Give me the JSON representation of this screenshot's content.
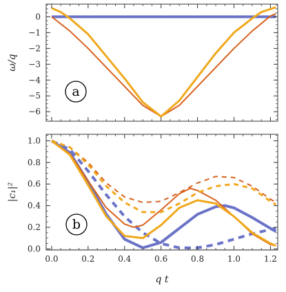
{
  "chart_data": [
    {
      "type": "line",
      "panel_label": "a",
      "xlabel": "",
      "ylabel": "ω/q",
      "xlim": [
        -0.03,
        1.24
      ],
      "ylim": [
        -6.6,
        0.8
      ],
      "xticks": [
        0.0,
        0.2,
        0.4,
        0.6,
        0.8,
        1.0,
        1.2
      ],
      "yticks": [
        0,
        -1,
        -2,
        -3,
        -4,
        -5,
        -6
      ],
      "ytick_labels": [
        "0",
        "−1",
        "−2",
        "−3",
        "−4",
        "−5",
        "−6"
      ],
      "grid": false,
      "series": [
        {
          "color": "#6a73c7",
          "width": 4,
          "dash": "",
          "x": [
            0.0,
            1.23
          ],
          "y": [
            0,
            0
          ]
        },
        {
          "color": "#d8611d",
          "width": 2,
          "dash": "",
          "x": [
            0.0,
            0.1,
            0.2,
            0.3,
            0.4,
            0.5,
            0.6,
            0.7,
            0.8,
            0.9,
            1.0,
            1.1,
            1.2,
            1.23
          ],
          "y": [
            0.0,
            -0.9,
            -2.0,
            -3.2,
            -4.4,
            -5.6,
            -6.3,
            -5.6,
            -4.4,
            -3.2,
            -2.0,
            -0.9,
            0.05,
            0.2
          ]
        },
        {
          "color": "#f0a81c",
          "width": 3,
          "dash": "",
          "x": [
            0.0,
            0.05,
            0.1,
            0.2,
            0.3,
            0.4,
            0.5,
            0.6,
            0.7,
            0.8,
            0.9,
            1.0,
            1.1,
            1.15,
            1.23
          ],
          "y": [
            0.55,
            0.3,
            -0.1,
            -1.1,
            -2.5,
            -3.9,
            -5.4,
            -6.3,
            -5.3,
            -3.8,
            -2.3,
            -1.0,
            -0.1,
            0.3,
            0.6
          ]
        }
      ]
    },
    {
      "type": "line",
      "panel_label": "b",
      "xlabel": "q t",
      "ylabel": "|c₁|²",
      "xlim": [
        -0.03,
        1.24
      ],
      "ylim": [
        -0.01,
        1.06
      ],
      "xticks": [
        0.0,
        0.2,
        0.4,
        0.6,
        0.8,
        1.0,
        1.2
      ],
      "xtick_labels": [
        "0.0",
        "0.2",
        "0.4",
        "0.6",
        "0.8",
        "1.0",
        "1.2"
      ],
      "yticks": [
        0.0,
        0.2,
        0.4,
        0.6,
        0.8,
        1.0
      ],
      "ytick_labels": [
        "0.0",
        "0.2",
        "0.4",
        "0.6",
        "0.8",
        "1.0"
      ],
      "grid": false,
      "series": [
        {
          "color": "#6a73c7",
          "width": 4,
          "dash": "",
          "x": [
            0.0,
            0.1,
            0.2,
            0.3,
            0.4,
            0.5,
            0.6,
            0.7,
            0.8,
            0.9,
            0.95,
            1.0,
            1.1,
            1.23
          ],
          "y": [
            1.0,
            0.89,
            0.62,
            0.32,
            0.09,
            0.01,
            0.06,
            0.19,
            0.32,
            0.39,
            0.4,
            0.38,
            0.29,
            0.16
          ]
        },
        {
          "color": "#6a73c7",
          "width": 4,
          "dash": "9,7",
          "x": [
            0.0,
            0.1,
            0.2,
            0.3,
            0.4,
            0.5,
            0.6,
            0.7,
            0.8,
            0.9,
            1.0,
            1.1,
            1.2,
            1.23
          ],
          "y": [
            1.0,
            0.92,
            0.72,
            0.5,
            0.3,
            0.15,
            0.05,
            0.01,
            0.01,
            0.04,
            0.09,
            0.14,
            0.18,
            0.19
          ]
        },
        {
          "color": "#d8611d",
          "width": 2,
          "dash": "",
          "x": [
            0.0,
            0.1,
            0.2,
            0.3,
            0.4,
            0.45,
            0.5,
            0.6,
            0.7,
            0.76,
            0.8,
            0.9,
            1.0,
            1.1,
            1.2,
            1.23
          ],
          "y": [
            1.0,
            0.88,
            0.63,
            0.38,
            0.23,
            0.2,
            0.22,
            0.36,
            0.51,
            0.56,
            0.54,
            0.45,
            0.3,
            0.14,
            0.04,
            0.03
          ]
        },
        {
          "color": "#d8611d",
          "width": 2,
          "dash": "7,6",
          "x": [
            0.0,
            0.1,
            0.2,
            0.3,
            0.4,
            0.5,
            0.6,
            0.7,
            0.8,
            0.9,
            1.0,
            1.1,
            1.2,
            1.23
          ],
          "y": [
            1.0,
            0.94,
            0.8,
            0.61,
            0.48,
            0.43,
            0.44,
            0.52,
            0.61,
            0.67,
            0.66,
            0.58,
            0.46,
            0.43
          ]
        },
        {
          "color": "#f0a81c",
          "width": 3,
          "dash": "",
          "x": [
            0.0,
            0.1,
            0.2,
            0.3,
            0.4,
            0.5,
            0.6,
            0.7,
            0.8,
            0.9,
            1.0,
            1.1,
            1.2,
            1.23
          ],
          "y": [
            1.0,
            0.87,
            0.59,
            0.3,
            0.12,
            0.1,
            0.22,
            0.38,
            0.45,
            0.42,
            0.3,
            0.15,
            0.05,
            0.03
          ]
        },
        {
          "color": "#f0a81c",
          "width": 3,
          "dash": "7,6",
          "x": [
            0.0,
            0.1,
            0.2,
            0.3,
            0.4,
            0.5,
            0.6,
            0.7,
            0.8,
            0.9,
            1.0,
            1.1,
            1.2,
            1.23
          ],
          "y": [
            1.0,
            0.94,
            0.78,
            0.58,
            0.43,
            0.34,
            0.34,
            0.42,
            0.52,
            0.58,
            0.6,
            0.56,
            0.44,
            0.41
          ]
        }
      ]
    }
  ]
}
